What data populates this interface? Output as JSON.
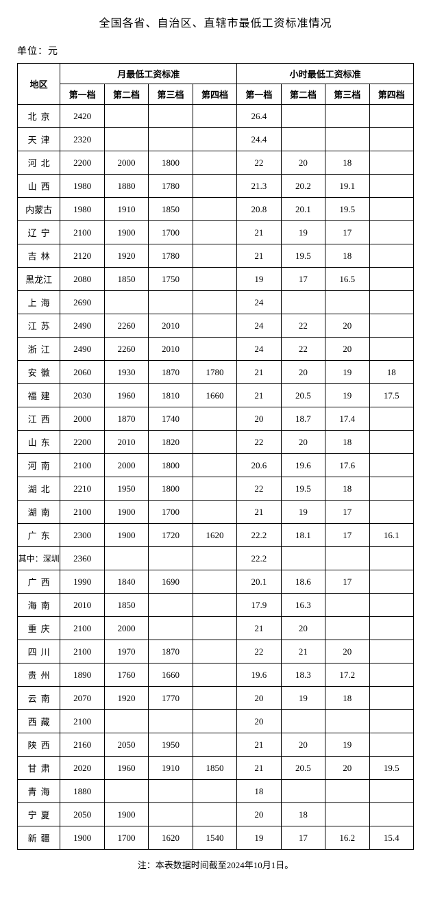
{
  "title": "全国各省、自治区、直辖市最低工资标准情况",
  "unit": "单位：元",
  "headers": {
    "region": "地区",
    "monthly": "月最低工资标准",
    "hourly": "小时最低工资标准",
    "tier1": "第一档",
    "tier2": "第二档",
    "tier3": "第三档",
    "tier4": "第四档"
  },
  "rows": [
    {
      "region": "北京",
      "m1": "2420",
      "m2": "",
      "m3": "",
      "m4": "",
      "h1": "26.4",
      "h2": "",
      "h3": "",
      "h4": "",
      "style": "region-cell"
    },
    {
      "region": "天津",
      "m1": "2320",
      "m2": "",
      "m3": "",
      "m4": "",
      "h1": "24.4",
      "h2": "",
      "h3": "",
      "h4": "",
      "style": "region-cell"
    },
    {
      "region": "河北",
      "m1": "2200",
      "m2": "2000",
      "m3": "1800",
      "m4": "",
      "h1": "22",
      "h2": "20",
      "h3": "18",
      "h4": "",
      "style": "region-cell"
    },
    {
      "region": "山西",
      "m1": "1980",
      "m2": "1880",
      "m3": "1780",
      "m4": "",
      "h1": "21.3",
      "h2": "20.2",
      "h3": "19.1",
      "h4": "",
      "style": "region-cell"
    },
    {
      "region": "内蒙古",
      "m1": "1980",
      "m2": "1910",
      "m3": "1850",
      "m4": "",
      "h1": "20.8",
      "h2": "20.1",
      "h3": "19.5",
      "h4": "",
      "style": "region-cell-3"
    },
    {
      "region": "辽宁",
      "m1": "2100",
      "m2": "1900",
      "m3": "1700",
      "m4": "",
      "h1": "21",
      "h2": "19",
      "h3": "17",
      "h4": "",
      "style": "region-cell"
    },
    {
      "region": "吉林",
      "m1": "2120",
      "m2": "1920",
      "m3": "1780",
      "m4": "",
      "h1": "21",
      "h2": "19.5",
      "h3": "18",
      "h4": "",
      "style": "region-cell"
    },
    {
      "region": "黑龙江",
      "m1": "2080",
      "m2": "1850",
      "m3": "1750",
      "m4": "",
      "h1": "19",
      "h2": "17",
      "h3": "16.5",
      "h4": "",
      "style": "region-cell-3"
    },
    {
      "region": "上海",
      "m1": "2690",
      "m2": "",
      "m3": "",
      "m4": "",
      "h1": "24",
      "h2": "",
      "h3": "",
      "h4": "",
      "style": "region-cell"
    },
    {
      "region": "江苏",
      "m1": "2490",
      "m2": "2260",
      "m3": "2010",
      "m4": "",
      "h1": "24",
      "h2": "22",
      "h3": "20",
      "h4": "",
      "style": "region-cell"
    },
    {
      "region": "浙江",
      "m1": "2490",
      "m2": "2260",
      "m3": "2010",
      "m4": "",
      "h1": "24",
      "h2": "22",
      "h3": "20",
      "h4": "",
      "style": "region-cell"
    },
    {
      "region": "安徽",
      "m1": "2060",
      "m2": "1930",
      "m3": "1870",
      "m4": "1780",
      "h1": "21",
      "h2": "20",
      "h3": "19",
      "h4": "18",
      "style": "region-cell"
    },
    {
      "region": "福建",
      "m1": "2030",
      "m2": "1960",
      "m3": "1810",
      "m4": "1660",
      "h1": "21",
      "h2": "20.5",
      "h3": "19",
      "h4": "17.5",
      "style": "region-cell"
    },
    {
      "region": "江西",
      "m1": "2000",
      "m2": "1870",
      "m3": "1740",
      "m4": "",
      "h1": "20",
      "h2": "18.7",
      "h3": "17.4",
      "h4": "",
      "style": "region-cell"
    },
    {
      "region": "山东",
      "m1": "2200",
      "m2": "2010",
      "m3": "1820",
      "m4": "",
      "h1": "22",
      "h2": "20",
      "h3": "18",
      "h4": "",
      "style": "region-cell"
    },
    {
      "region": "河南",
      "m1": "2100",
      "m2": "2000",
      "m3": "1800",
      "m4": "",
      "h1": "20.6",
      "h2": "19.6",
      "h3": "17.6",
      "h4": "",
      "style": "region-cell"
    },
    {
      "region": "湖北",
      "m1": "2210",
      "m2": "1950",
      "m3": "1800",
      "m4": "",
      "h1": "22",
      "h2": "19.5",
      "h3": "18",
      "h4": "",
      "style": "region-cell"
    },
    {
      "region": "湖南",
      "m1": "2100",
      "m2": "1900",
      "m3": "1700",
      "m4": "",
      "h1": "21",
      "h2": "19",
      "h3": "17",
      "h4": "",
      "style": "region-cell"
    },
    {
      "region": "广东",
      "m1": "2300",
      "m2": "1900",
      "m3": "1720",
      "m4": "1620",
      "h1": "22.2",
      "h2": "18.1",
      "h3": "17",
      "h4": "16.1",
      "style": "region-cell"
    },
    {
      "region": "其中：深圳",
      "m1": "2360",
      "m2": "",
      "m3": "",
      "m4": "",
      "h1": "22.2",
      "h2": "",
      "h3": "",
      "h4": "",
      "style": "region-cell-sz"
    },
    {
      "region": "广西",
      "m1": "1990",
      "m2": "1840",
      "m3": "1690",
      "m4": "",
      "h1": "20.1",
      "h2": "18.6",
      "h3": "17",
      "h4": "",
      "style": "region-cell"
    },
    {
      "region": "海南",
      "m1": "2010",
      "m2": "1850",
      "m3": "",
      "m4": "",
      "h1": "17.9",
      "h2": "16.3",
      "h3": "",
      "h4": "",
      "style": "region-cell"
    },
    {
      "region": "重庆",
      "m1": "2100",
      "m2": "2000",
      "m3": "",
      "m4": "",
      "h1": "21",
      "h2": "20",
      "h3": "",
      "h4": "",
      "style": "region-cell"
    },
    {
      "region": "四川",
      "m1": "2100",
      "m2": "1970",
      "m3": "1870",
      "m4": "",
      "h1": "22",
      "h2": "21",
      "h3": "20",
      "h4": "",
      "style": "region-cell"
    },
    {
      "region": "贵州",
      "m1": "1890",
      "m2": "1760",
      "m3": "1660",
      "m4": "",
      "h1": "19.6",
      "h2": "18.3",
      "h3": "17.2",
      "h4": "",
      "style": "region-cell"
    },
    {
      "region": "云南",
      "m1": "2070",
      "m2": "1920",
      "m3": "1770",
      "m4": "",
      "h1": "20",
      "h2": "19",
      "h3": "18",
      "h4": "",
      "style": "region-cell"
    },
    {
      "region": "西藏",
      "m1": "2100",
      "m2": "",
      "m3": "",
      "m4": "",
      "h1": "20",
      "h2": "",
      "h3": "",
      "h4": "",
      "style": "region-cell"
    },
    {
      "region": "陕西",
      "m1": "2160",
      "m2": "2050",
      "m3": "1950",
      "m4": "",
      "h1": "21",
      "h2": "20",
      "h3": "19",
      "h4": "",
      "style": "region-cell"
    },
    {
      "region": "甘肃",
      "m1": "2020",
      "m2": "1960",
      "m3": "1910",
      "m4": "1850",
      "h1": "21",
      "h2": "20.5",
      "h3": "20",
      "h4": "19.5",
      "style": "region-cell"
    },
    {
      "region": "青海",
      "m1": "1880",
      "m2": "",
      "m3": "",
      "m4": "",
      "h1": "18",
      "h2": "",
      "h3": "",
      "h4": "",
      "style": "region-cell"
    },
    {
      "region": "宁夏",
      "m1": "2050",
      "m2": "1900",
      "m3": "",
      "m4": "",
      "h1": "20",
      "h2": "18",
      "h3": "",
      "h4": "",
      "style": "region-cell"
    },
    {
      "region": "新疆",
      "m1": "1900",
      "m2": "1700",
      "m3": "1620",
      "m4": "1540",
      "h1": "19",
      "h2": "17",
      "h3": "16.2",
      "h4": "15.4",
      "style": "region-cell"
    }
  ],
  "footer": "注：本表数据时间截至2024年10月1日。"
}
